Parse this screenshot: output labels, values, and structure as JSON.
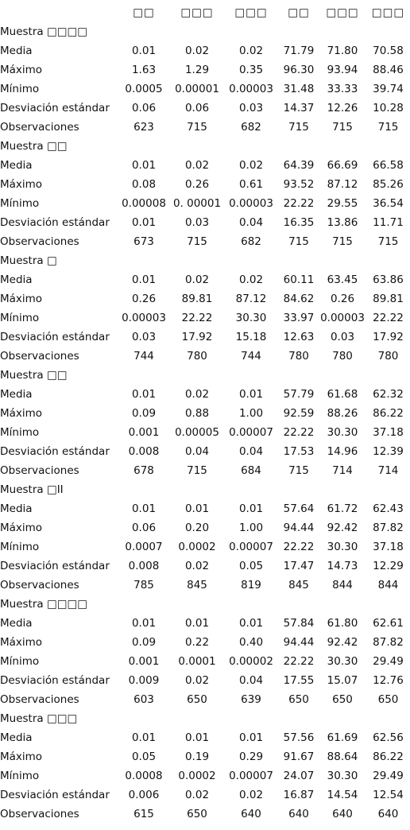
{
  "table": {
    "columns": [
      "□□",
      "□□□",
      "□□□",
      "□□",
      "□□□",
      "□□□"
    ],
    "sections": [
      {
        "title": "Muestra □□□□",
        "rows": [
          {
            "label": "Media",
            "values": [
              "0.01",
              "0.02",
              "0.02",
              "71.79",
              "71.80",
              "70.58"
            ]
          },
          {
            "label": "Máximo",
            "values": [
              "1.63",
              "1.29",
              "0.35",
              "96.30",
              "93.94",
              "88.46"
            ]
          },
          {
            "label": "Mínimo",
            "values": [
              "0.0005",
              "0.00001",
              "0.00003",
              "31.48",
              "33.33",
              "39.74"
            ]
          },
          {
            "label": "Desviación estándar",
            "values": [
              "0.06",
              "0.06",
              "0.03",
              "14.37",
              "12.26",
              "10.28"
            ]
          },
          {
            "label": "Observaciones",
            "values": [
              "623",
              "715",
              "682",
              "715",
              "715",
              "715"
            ]
          }
        ]
      },
      {
        "title": "Muestra □□",
        "rows": [
          {
            "label": "Media",
            "values": [
              "0.01",
              "0.02",
              "0.02",
              "64.39",
              "66.69",
              "66.58"
            ]
          },
          {
            "label": "Máximo",
            "values": [
              "0.08",
              "0.26",
              "0.61",
              "93.52",
              "87.12",
              "85.26"
            ]
          },
          {
            "label": "Mínimo",
            "values": [
              "0.00008",
              "0. 00001",
              "0.00003",
              "22.22",
              "29.55",
              "36.54"
            ]
          },
          {
            "label": "Desviación estándar",
            "values": [
              "0.01",
              "0.03",
              "0.04",
              "16.35",
              "13.86",
              "11.71"
            ]
          },
          {
            "label": "Observaciones",
            "values": [
              "673",
              "715",
              "682",
              "715",
              "715",
              "715"
            ]
          }
        ]
      },
      {
        "title": "Muestra □",
        "rows": [
          {
            "label": "Media",
            "values": [
              "0.01",
              "0.02",
              "0.02",
              "60.11",
              "63.45",
              "63.86"
            ]
          },
          {
            "label": "Máximo",
            "values": [
              "0.26",
              "89.81",
              "87.12",
              "84.62",
              "0.26",
              "89.81"
            ]
          },
          {
            "label": "Mínimo",
            "values": [
              "0.00003",
              "22.22",
              "30.30",
              "33.97",
              "0.00003",
              "22.22"
            ]
          },
          {
            "label": "Desviación estándar",
            "values": [
              "0.03",
              "17.92",
              "15.18",
              "12.63",
              "0.03",
              "17.92"
            ]
          },
          {
            "label": "Observaciones",
            "values": [
              "744",
              "780",
              "744",
              "780",
              "780",
              "780"
            ]
          }
        ]
      },
      {
        "title": "Muestra □□",
        "rows": [
          {
            "label": "Media",
            "values": [
              "0.01",
              "0.02",
              "0.01",
              "57.79",
              "61.68",
              "62.32"
            ]
          },
          {
            "label": "Máximo",
            "values": [
              "0.09",
              "0.88",
              "1.00",
              "92.59",
              "88.26",
              "86.22"
            ]
          },
          {
            "label": "Mínimo",
            "values": [
              "0.001",
              "0.00005",
              "0.00007",
              "22.22",
              "30.30",
              "37.18"
            ]
          },
          {
            "label": "Desviación estándar",
            "values": [
              "0.008",
              "0.04",
              "0.04",
              "17.53",
              "14.96",
              "12.39"
            ]
          },
          {
            "label": "Observaciones",
            "values": [
              "678",
              "715",
              "684",
              "715",
              "714",
              "714"
            ]
          }
        ]
      },
      {
        "title": "Muestra □II",
        "rows": [
          {
            "label": "Media",
            "values": [
              "0.01",
              "0.01",
              "0.01",
              "57.64",
              "61.72",
              "62.43"
            ]
          },
          {
            "label": "Máximo",
            "values": [
              "0.06",
              "0.20",
              "1.00",
              "94.44",
              "92.42",
              "87.82"
            ]
          },
          {
            "label": "Mínimo",
            "values": [
              "0.0007",
              "0.0002",
              "0.00007",
              "22.22",
              "30.30",
              "37.18"
            ]
          },
          {
            "label": "Desviación estándar",
            "values": [
              "0.008",
              "0.02",
              "0.05",
              "17.47",
              "14.73",
              "12.29"
            ]
          },
          {
            "label": "Observaciones",
            "values": [
              "785",
              "845",
              "819",
              "845",
              "844",
              "844"
            ]
          }
        ]
      },
      {
        "title": "Muestra □□□□",
        "rows": [
          {
            "label": "Media",
            "values": [
              "0.01",
              "0.01",
              "0.01",
              "57.84",
              "61.80",
              "62.61"
            ]
          },
          {
            "label": "Máximo",
            "values": [
              "0.09",
              "0.22",
              "0.40",
              "94.44",
              "92.42",
              "87.82"
            ]
          },
          {
            "label": "Mínimo",
            "values": [
              "0.001",
              "0.0001",
              "0.00002",
              "22.22",
              "30.30",
              "29.49"
            ]
          },
          {
            "label": "Desviación estándar",
            "values": [
              "0.009",
              "0.02",
              "0.04",
              "17.55",
              "15.07",
              "12.76"
            ]
          },
          {
            "label": "Observaciones",
            "values": [
              "603",
              "650",
              "639",
              "650",
              "650",
              "650"
            ]
          }
        ]
      },
      {
        "title": "Muestra □□□",
        "rows": [
          {
            "label": "Media",
            "values": [
              "0.01",
              "0.01",
              "0.01",
              "57.56",
              "61.69",
              "62.56"
            ]
          },
          {
            "label": "Máximo",
            "values": [
              "0.05",
              "0.19",
              "0.29",
              "91.67",
              "88.64",
              "86.22"
            ]
          },
          {
            "label": "Mínimo",
            "values": [
              "0.0008",
              "0.0002",
              "0.00007",
              "24.07",
              "30.30",
              "29.49"
            ]
          },
          {
            "label": "Desviación estándar",
            "values": [
              "0.006",
              "0.02",
              "0.02",
              "16.87",
              "14.54",
              "12.54"
            ]
          },
          {
            "label": "Observaciones",
            "values": [
              "615",
              "650",
              "640",
              "640",
              "640",
              "640"
            ]
          }
        ]
      }
    ]
  }
}
